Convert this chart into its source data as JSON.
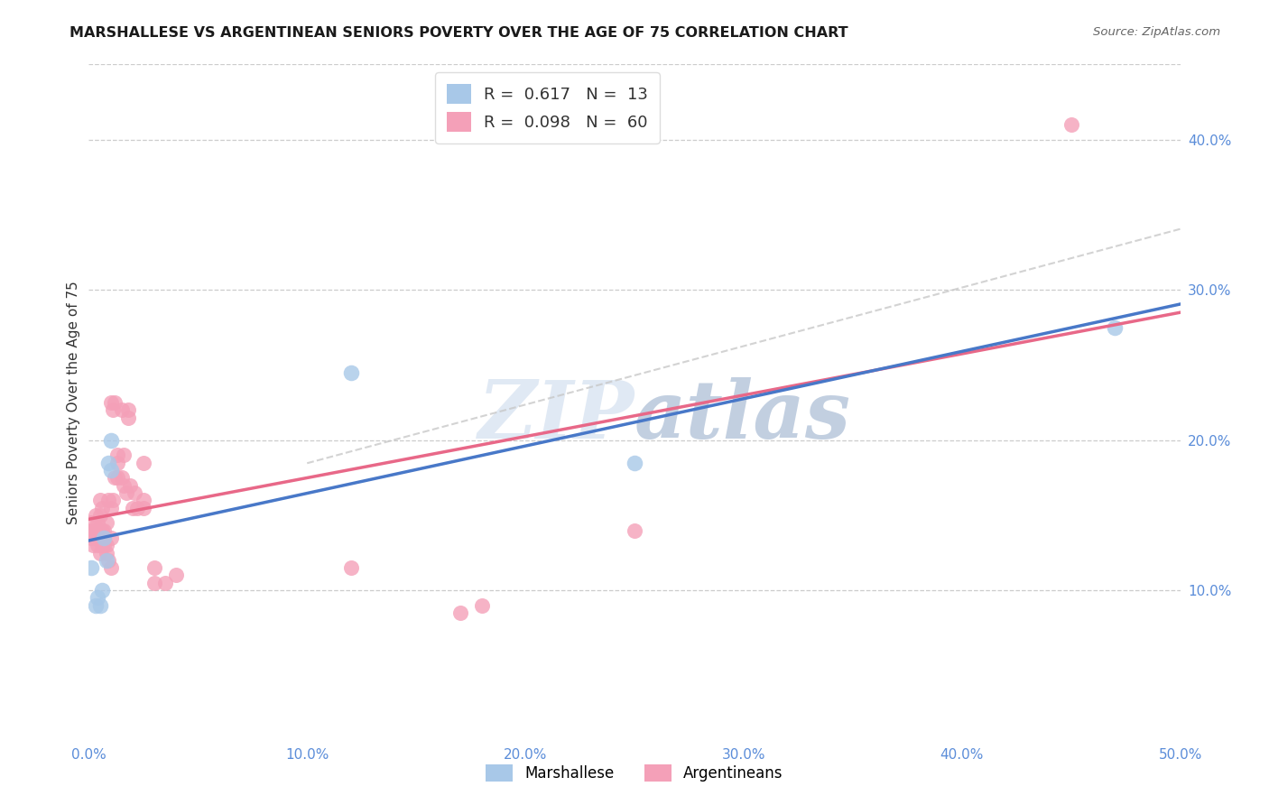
{
  "title": "MARSHALLESE VS ARGENTINEAN SENIORS POVERTY OVER THE AGE OF 75 CORRELATION CHART",
  "source": "Source: ZipAtlas.com",
  "ylabel": "Seniors Poverty Over the Age of 75",
  "xlim": [
    0.0,
    0.5
  ],
  "ylim": [
    0.0,
    0.45
  ],
  "x_ticks": [
    0.0,
    0.1,
    0.2,
    0.3,
    0.4,
    0.5
  ],
  "x_tick_labels": [
    "0.0%",
    "10.0%",
    "20.0%",
    "30.0%",
    "40.0%",
    "50.0%"
  ],
  "y_ticks": [
    0.1,
    0.2,
    0.3,
    0.4
  ],
  "y_tick_labels": [
    "10.0%",
    "20.0%",
    "30.0%",
    "40.0%"
  ],
  "marshallese_R": 0.617,
  "marshallese_N": 13,
  "argentinean_R": 0.098,
  "argentinean_N": 60,
  "marshallese_color": "#a8c8e8",
  "argentinean_color": "#f4a0b8",
  "marshallese_line_color": "#4878c8",
  "argentinean_line_color": "#e86888",
  "dashed_line_color": "#c8c8c8",
  "watermark_color": "#c8d8ec",
  "marshallese_x": [
    0.001,
    0.003,
    0.004,
    0.005,
    0.006,
    0.007,
    0.008,
    0.009,
    0.01,
    0.01,
    0.12,
    0.25,
    0.47
  ],
  "marshallese_y": [
    0.115,
    0.09,
    0.095,
    0.09,
    0.1,
    0.135,
    0.12,
    0.185,
    0.18,
    0.2,
    0.245,
    0.185,
    0.275
  ],
  "argentinean_x": [
    0.0,
    0.001,
    0.001,
    0.002,
    0.002,
    0.003,
    0.003,
    0.003,
    0.004,
    0.004,
    0.004,
    0.005,
    0.005,
    0.005,
    0.005,
    0.006,
    0.006,
    0.006,
    0.007,
    0.007,
    0.007,
    0.008,
    0.008,
    0.008,
    0.009,
    0.009,
    0.01,
    0.01,
    0.01,
    0.01,
    0.011,
    0.011,
    0.012,
    0.012,
    0.013,
    0.013,
    0.013,
    0.015,
    0.015,
    0.016,
    0.016,
    0.017,
    0.018,
    0.018,
    0.019,
    0.02,
    0.021,
    0.022,
    0.025,
    0.025,
    0.025,
    0.03,
    0.03,
    0.035,
    0.04,
    0.12,
    0.17,
    0.18,
    0.25,
    0.45
  ],
  "argentinean_y": [
    0.14,
    0.135,
    0.145,
    0.13,
    0.14,
    0.135,
    0.14,
    0.15,
    0.13,
    0.135,
    0.145,
    0.125,
    0.14,
    0.15,
    0.16,
    0.13,
    0.14,
    0.155,
    0.13,
    0.135,
    0.14,
    0.125,
    0.13,
    0.145,
    0.12,
    0.16,
    0.115,
    0.135,
    0.155,
    0.225,
    0.16,
    0.22,
    0.175,
    0.225,
    0.175,
    0.185,
    0.19,
    0.175,
    0.22,
    0.17,
    0.19,
    0.165,
    0.215,
    0.22,
    0.17,
    0.155,
    0.165,
    0.155,
    0.155,
    0.16,
    0.185,
    0.105,
    0.115,
    0.105,
    0.11,
    0.115,
    0.085,
    0.09,
    0.14,
    0.41
  ]
}
